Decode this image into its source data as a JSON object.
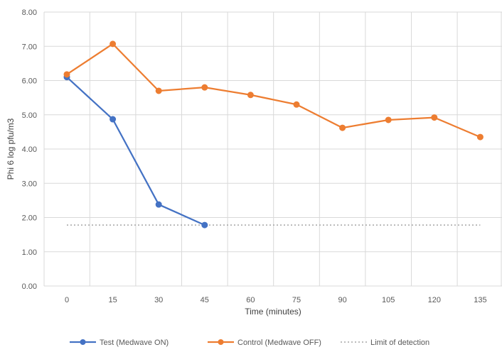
{
  "chart_data": {
    "type": "line",
    "title": "",
    "xlabel": "Time (minutes)",
    "ylabel": "Phi 6 log pfu/m3",
    "x": [
      0,
      15,
      30,
      45,
      60,
      75,
      90,
      105,
      120,
      135
    ],
    "x_tick_labels": [
      "0",
      "15",
      "30",
      "45",
      "60",
      "75",
      "90",
      "105",
      "120",
      "135"
    ],
    "y_tick_labels": [
      "0.00",
      "1.00",
      "2.00",
      "3.00",
      "4.00",
      "5.00",
      "6.00",
      "7.00",
      "8.00"
    ],
    "ylim": [
      0,
      8
    ],
    "grid": "vertical and horizontal",
    "legend_position": "bottom",
    "series": [
      {
        "name": "Test (Medwave ON)",
        "color": "#4472C4",
        "x": [
          0,
          15,
          30,
          45
        ],
        "values": [
          6.1,
          4.87,
          2.38,
          1.78
        ],
        "style": "line-with-markers"
      },
      {
        "name": "Control (Medwave OFF)",
        "color": "#ED7D31",
        "x": [
          0,
          15,
          30,
          45,
          60,
          75,
          90,
          105,
          120,
          135
        ],
        "values": [
          6.18,
          7.07,
          5.7,
          5.8,
          5.58,
          5.3,
          4.62,
          4.85,
          4.92,
          4.35
        ],
        "style": "line-with-markers"
      },
      {
        "name": "Limit of detection",
        "color": "#A5A5A5",
        "x": [
          0,
          135
        ],
        "values": [
          1.78,
          1.78
        ],
        "style": "dotted"
      }
    ]
  }
}
